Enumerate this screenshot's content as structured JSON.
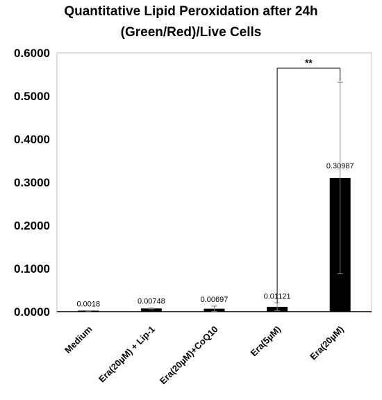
{
  "chart_data": {
    "type": "bar",
    "title": "Quantitative Lipid Peroxidation after 24h",
    "subtitle": "(Green/Red)/Live Cells",
    "categories": [
      "Medium",
      "Era(20µM) + Lip-1",
      "Era(20µM)+CoQ10",
      "Era(5µM)",
      "Era(20µM)"
    ],
    "values": [
      0.0018,
      0.00748,
      0.00697,
      0.01121,
      0.30987
    ],
    "value_labels": [
      "0.0018",
      "0.00748",
      "0.00697",
      "0.01121",
      "0.30987"
    ],
    "error": [
      0.0005,
      0.001,
      0.006,
      0.009,
      0.222
    ],
    "ylim": [
      0,
      0.6
    ],
    "yticks": [
      0,
      0.1,
      0.2,
      0.3,
      0.4,
      0.5,
      0.6
    ],
    "ytick_labels": [
      "0.0000",
      "0.1000",
      "0.2000",
      "0.3000",
      "0.4000",
      "0.5000",
      "0.6000"
    ],
    "bar_color": "#000000",
    "significance": {
      "from_index": 3,
      "to_index": 4,
      "label": "**"
    },
    "grid": false
  }
}
